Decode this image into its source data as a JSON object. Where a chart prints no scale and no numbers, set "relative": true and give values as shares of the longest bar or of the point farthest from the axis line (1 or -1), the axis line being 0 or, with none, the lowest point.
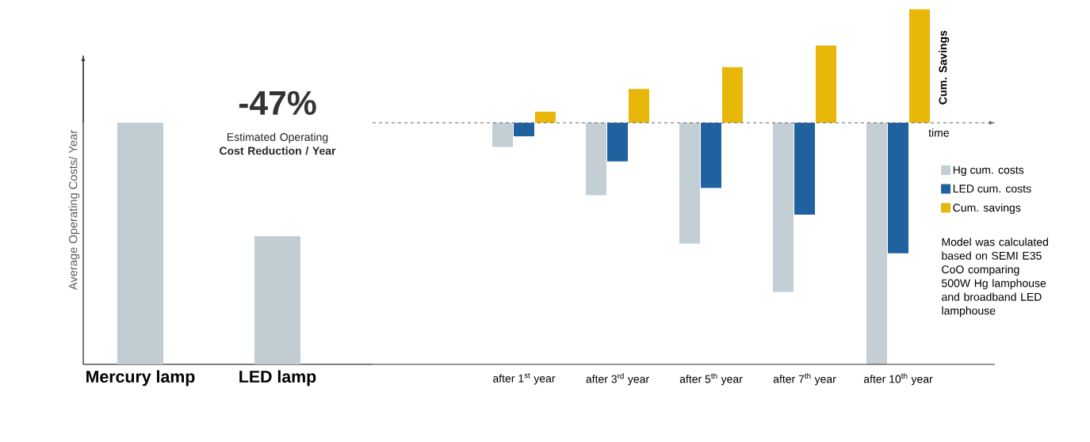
{
  "chart_data": [
    {
      "type": "bar",
      "relative": true,
      "ylabel": "Average Operating Costs/ Year",
      "categories": [
        "Mercury lamp",
        "LED lamp"
      ],
      "values": [
        1,
        0.53
      ],
      "color": "#c2ccd3",
      "annotations": [
        "-47%",
        "Estimated Operating **Cost Reduction / Year**"
      ]
    },
    {
      "type": "bar",
      "relative": true,
      "xlabel": "time",
      "ylabel": "Cum. Savings",
      "legend": "right",
      "categories": [
        "after 1$^{st}$ year",
        "after 3$^{rd}$ year",
        "after 5$^{th}$ year",
        "after 7$^{th}$ year",
        "after 10$^{th}$ year"
      ],
      "series": [
        {
          "name": "Hg cum. costs",
          "color": "#c3ced5",
          "values": [
            -0.1,
            -0.3,
            -0.5,
            -0.7,
            -1
          ]
        },
        {
          "name": "LED cum. costs",
          "color": "#2061a0",
          "values": [
            -0.056,
            -0.16,
            -0.27,
            -0.38,
            -0.54
          ]
        },
        {
          "name": "Cum. savings",
          "color": "#e8b70a",
          "values": [
            0.046,
            0.14,
            0.23,
            0.32,
            0.47
          ]
        }
      ],
      "ref_lines": [
        {
          "axis": "y",
          "value": 0,
          "color": "#666666",
          "line_style": "dashed"
        }
      ],
      "annotations": [
        "Model was calculated based on SEMI E35 CoO comparing 500W Hg lamphouse and broadband LED lamphouse"
      ]
    }
  ]
}
